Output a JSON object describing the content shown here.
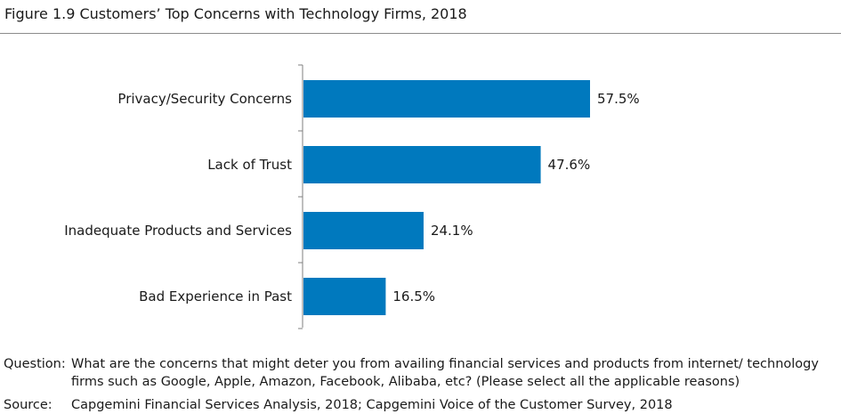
{
  "figure": {
    "title": "Figure 1.9 Customers’ Top Concerns with Technology Firms, 2018"
  },
  "chart_data": {
    "type": "bar",
    "orientation": "horizontal",
    "categories": [
      "Privacy/Security Concerns",
      "Lack of Trust",
      "Inadequate Products and Services",
      "Bad Experience in Past"
    ],
    "values": [
      57.5,
      47.6,
      24.1,
      16.5
    ],
    "value_labels": [
      "57.5%",
      "47.6%",
      "24.1%",
      "16.5%"
    ],
    "unit": "%",
    "xlim": [
      0,
      100
    ],
    "grid": false,
    "legend": "none",
    "bar_color": "#0079BE"
  },
  "notes": {
    "question_label": "Question:",
    "question_text": "What are the concerns that might deter you from availing financial services and products from internet/ technology firms such as Google, Apple, Amazon, Facebook, Alibaba, etc? (Please select all the applicable reasons)",
    "source_label": "Source:",
    "source_text": "Capgemini Financial Services Analysis, 2018; Capgemini Voice of the Customer Survey, 2018"
  }
}
